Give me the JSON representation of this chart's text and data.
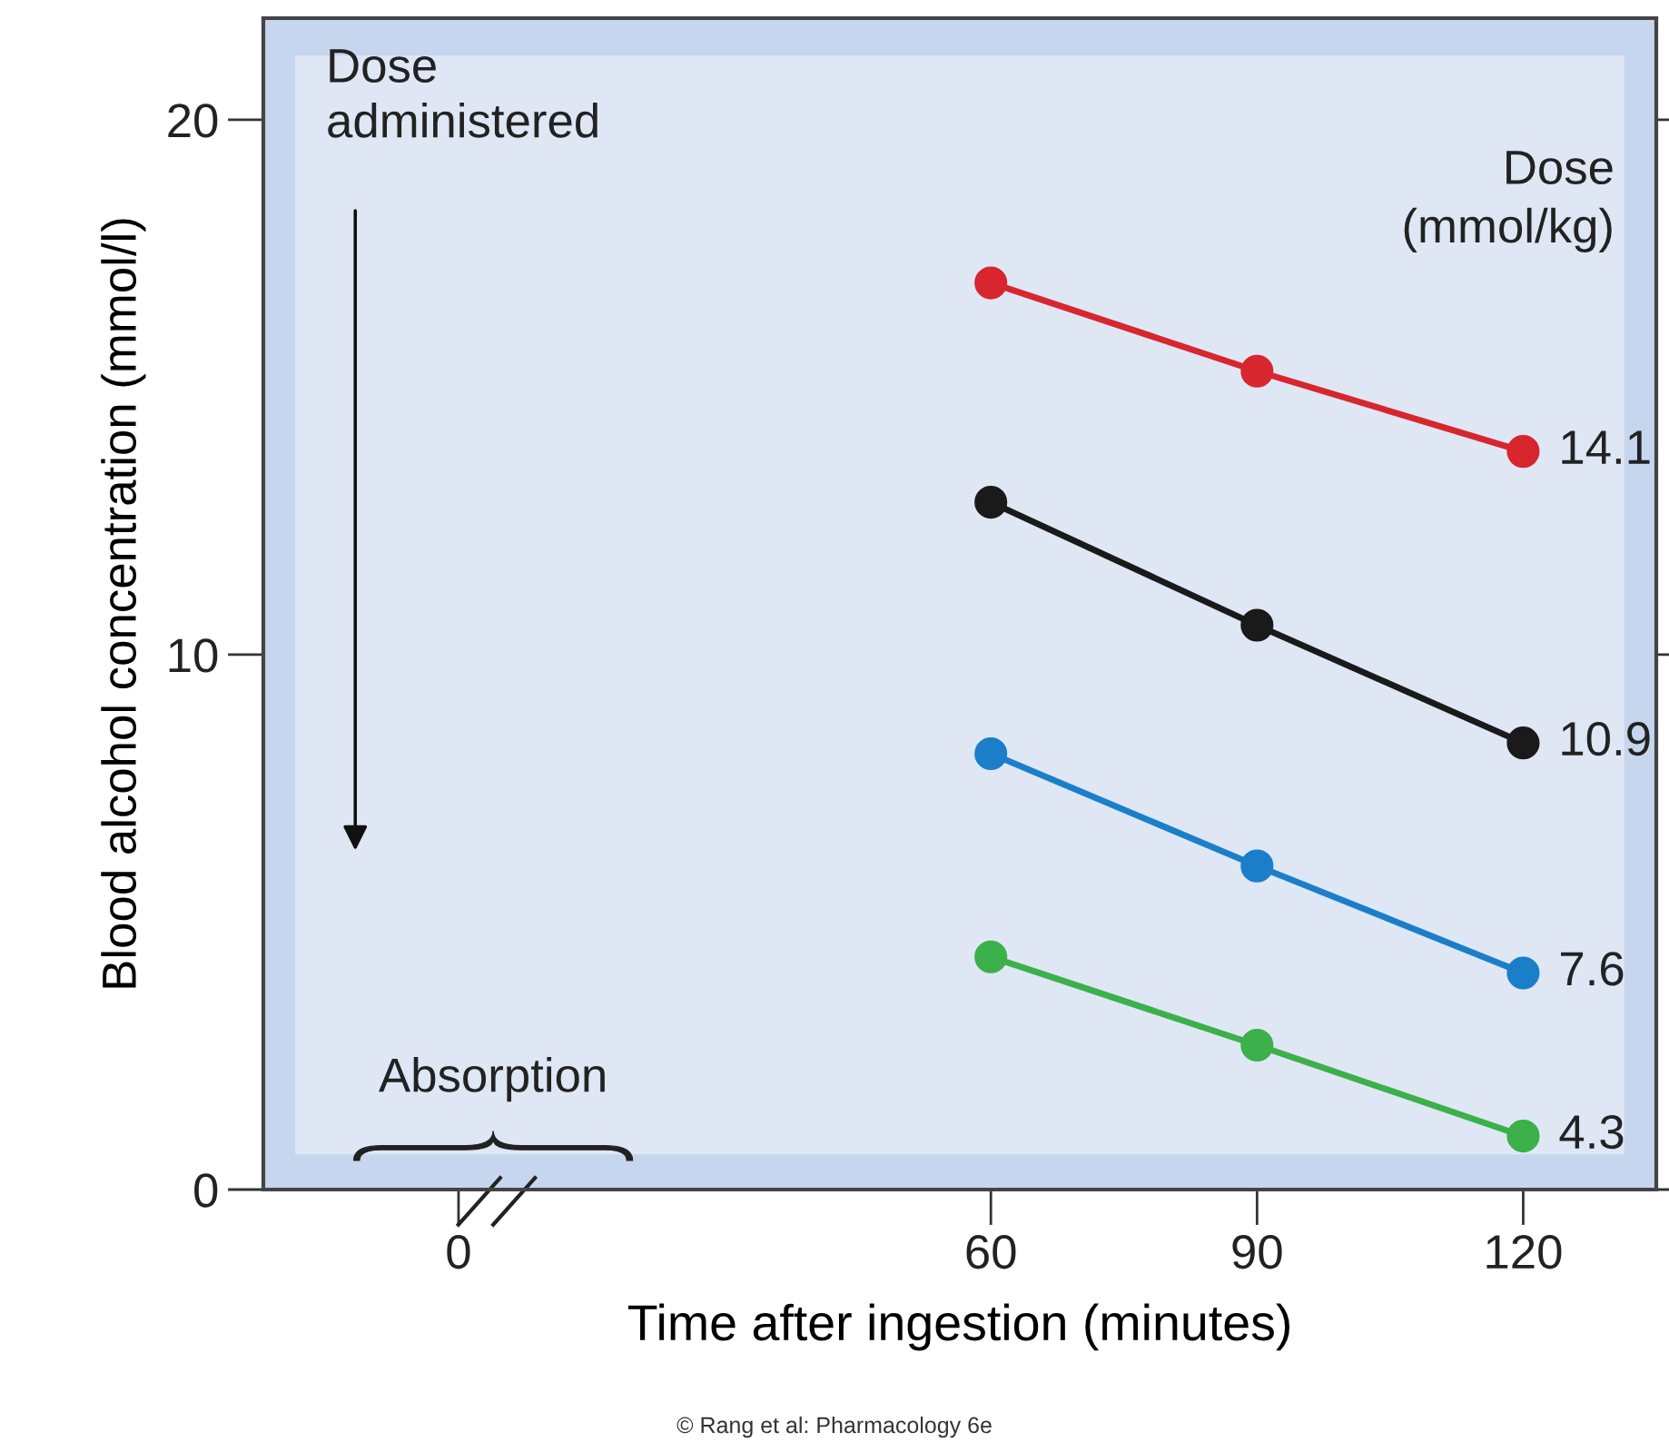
{
  "chart_data": {
    "type": "line",
    "xlabel": "Time after ingestion (minutes)",
    "ylabel": "Blood alcohol concentration (mmol/l)",
    "legend_title": "Dose\n(mmol/kg)",
    "x": [
      60,
      90,
      120
    ],
    "series": [
      {
        "name": "14.1",
        "color": "#d8262e",
        "values": [
          16.95,
          15.3,
          13.8
        ]
      },
      {
        "name": "10.9",
        "color": "#1a1a1a",
        "values": [
          12.85,
          10.55,
          8.35
        ]
      },
      {
        "name": "7.6",
        "color": "#1a7fc8",
        "values": [
          8.15,
          6.05,
          4.05
        ]
      },
      {
        "name": "4.3",
        "color": "#3cb04a",
        "values": [
          4.35,
          2.7,
          1.0
        ]
      }
    ],
    "xlim": [
      -22,
      135
    ],
    "xticks": [
      0,
      60,
      90,
      120
    ],
    "ylim": [
      0,
      21.9
    ],
    "yticks": [
      0,
      10,
      20
    ],
    "annotations": [
      "Dose\nadministered",
      "Absorption",
      "© Rang et al: Pharmacology 6e"
    ],
    "marker": "circle",
    "line_style": "solid",
    "grid": false,
    "legend": false
  }
}
